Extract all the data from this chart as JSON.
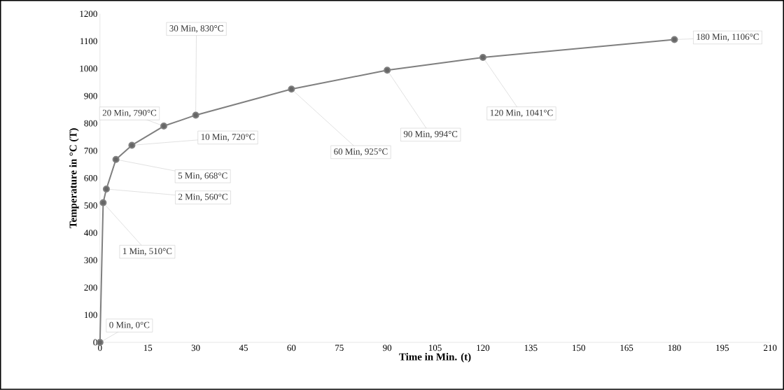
{
  "chart_data": {
    "type": "line",
    "xlabel": "Time in Min. (t)",
    "ylabel": "Temperature in °C (T)",
    "x": [
      0,
      1,
      2,
      5,
      10,
      20,
      30,
      60,
      90,
      120,
      180
    ],
    "series": [
      {
        "color": "#7f7f7f",
        "values": [
          0,
          510,
          560,
          668,
          720,
          790,
          830,
          925,
          994,
          1041,
          1106
        ]
      }
    ],
    "xlim": [
      0,
      210
    ],
    "xticks": [
      0,
      15,
      30,
      45,
      60,
      75,
      90,
      105,
      120,
      135,
      150,
      165,
      180,
      195,
      210
    ],
    "ylim": [
      0,
      1200
    ],
    "yticks": [
      0,
      100,
      200,
      300,
      400,
      500,
      600,
      700,
      800,
      900,
      1000,
      1100,
      1200
    ],
    "grid": false,
    "marker": "circle",
    "line_style": "solid",
    "annotations": [
      {
        "text": "0 Min, 0°C",
        "x": 0,
        "y": 0
      },
      {
        "text": "1 Min, 510°C",
        "x": 1,
        "y": 510
      },
      {
        "text": "2 Min, 560°C",
        "x": 2,
        "y": 560
      },
      {
        "text": "5 Min, 668°C",
        "x": 5,
        "y": 668
      },
      {
        "text": "10 Min, 720°C",
        "x": 10,
        "y": 720
      },
      {
        "text": "20 Min, 790°C",
        "x": 20,
        "y": 790
      },
      {
        "text": "30 Min, 830°C",
        "x": 30,
        "y": 830
      },
      {
        "text": "60 Min, 925°C",
        "x": 60,
        "y": 925
      },
      {
        "text": "90 Min, 994°C",
        "x": 90,
        "y": 994
      },
      {
        "text": "120 Min, 1041°C",
        "x": 120,
        "y": 1041
      },
      {
        "text": "180 Min, 1106°C",
        "x": 180,
        "y": 1106
      }
    ]
  }
}
